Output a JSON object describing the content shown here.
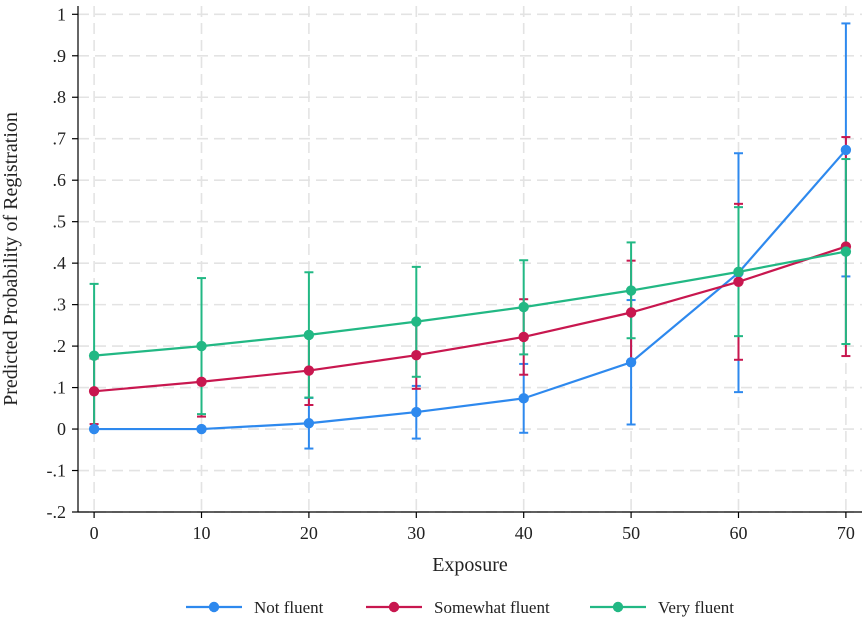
{
  "chart_data": {
    "type": "line",
    "title": "",
    "xlabel": "Exposure",
    "ylabel": "Predicted Probability of Registration",
    "x": [
      0,
      10,
      20,
      30,
      40,
      50,
      60,
      70
    ],
    "x_ticks": [
      0,
      10,
      20,
      30,
      40,
      50,
      60,
      70
    ],
    "x_tick_labels": [
      "0",
      "10",
      "20",
      "30",
      "40",
      "50",
      "60",
      "70"
    ],
    "xlim": [
      -1.5,
      71.5
    ],
    "y_ticks": [
      -0.2,
      -0.1,
      0,
      0.1,
      0.2,
      0.3,
      0.4,
      0.5,
      0.6,
      0.7,
      0.8,
      0.9,
      1
    ],
    "y_tick_labels": [
      "-.2",
      "-.1",
      "0",
      ".1",
      ".2",
      ".3",
      ".4",
      ".5",
      ".6",
      ".7",
      ".8",
      ".9",
      "1"
    ],
    "ylim": [
      -0.2,
      1.02
    ],
    "grid": true,
    "legend_position": "bottom",
    "series": [
      {
        "name": "Not fluent",
        "color": "#2e89ee",
        "values": [
          0.0,
          0.0,
          0.014,
          0.041,
          0.074,
          0.161,
          0.377,
          0.673
        ],
        "ci_low": [
          null,
          null,
          -0.047,
          -0.023,
          -0.009,
          0.011,
          0.089,
          0.368
        ],
        "ci_high": [
          null,
          null,
          0.075,
          0.104,
          0.157,
          0.311,
          0.665,
          0.978
        ]
      },
      {
        "name": "Somewhat fluent",
        "color": "#c8174f",
        "values": [
          0.091,
          0.114,
          0.141,
          0.178,
          0.222,
          0.281,
          0.355,
          0.44
        ],
        "ci_low": [
          0.012,
          0.03,
          0.058,
          0.097,
          0.131,
          0.163,
          0.167,
          0.176
        ],
        "ci_high": [
          0.17,
          0.198,
          0.224,
          0.259,
          0.313,
          0.406,
          0.543,
          0.704
        ]
      },
      {
        "name": "Very fluent",
        "color": "#22b884",
        "values": [
          0.177,
          0.2,
          0.227,
          0.259,
          0.294,
          0.334,
          0.379,
          0.428
        ],
        "ci_low": [
          0.004,
          0.036,
          0.076,
          0.126,
          0.18,
          0.219,
          0.224,
          0.205
        ],
        "ci_high": [
          0.35,
          0.364,
          0.378,
          0.391,
          0.407,
          0.45,
          0.535,
          0.651
        ]
      }
    ]
  }
}
